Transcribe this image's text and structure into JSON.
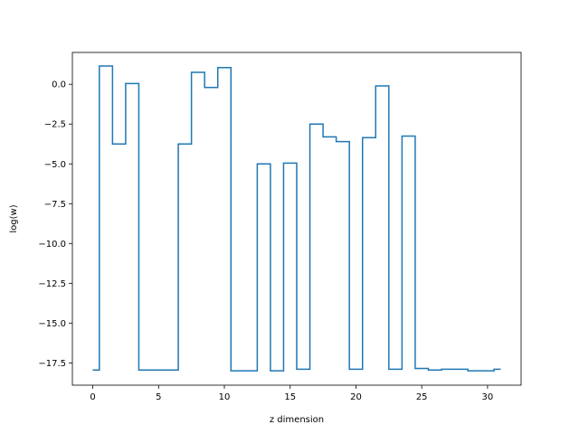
{
  "chart_data": {
    "type": "line",
    "drawstyle": "steps-mid",
    "title": "",
    "xlabel": "z dimension",
    "ylabel": "log(w)",
    "xlim": [
      -1.55,
      32.55
    ],
    "ylim": [
      -18.9,
      2.0
    ],
    "grid": false,
    "xticks": [
      0,
      5,
      10,
      15,
      20,
      25,
      30
    ],
    "xtick_labels": [
      "0",
      "5",
      "10",
      "15",
      "20",
      "25",
      "30"
    ],
    "yticks": [
      0.0,
      -2.5,
      -5.0,
      -7.5,
      -10.0,
      -12.5,
      -15.0,
      -17.5
    ],
    "ytick_labels": [
      "0.0",
      "−2.5",
      "−5.0",
      "−7.5",
      "−10.0",
      "−12.5",
      "−15.0",
      "−17.5"
    ],
    "series": [
      {
        "color": "#1f77b4",
        "x": [
          0,
          1,
          2,
          3,
          4,
          5,
          6,
          7,
          8,
          9,
          10,
          11,
          12,
          13,
          14,
          15,
          16,
          17,
          18,
          19,
          20,
          21,
          22,
          23,
          24,
          25,
          26,
          27,
          28,
          29,
          30,
          31
        ],
        "y": [
          -17.95,
          1.15,
          -3.75,
          0.05,
          -17.95,
          -17.95,
          -17.95,
          -3.75,
          0.75,
          -0.2,
          1.05,
          -18.0,
          -18.0,
          -5.0,
          -18.0,
          -4.95,
          -17.9,
          -2.5,
          -3.3,
          -3.6,
          -17.9,
          -3.35,
          -0.1,
          -17.9,
          -3.25,
          -17.85,
          -17.95,
          -17.9,
          -17.9,
          -18.0,
          -18.0,
          -17.9
        ]
      }
    ]
  }
}
